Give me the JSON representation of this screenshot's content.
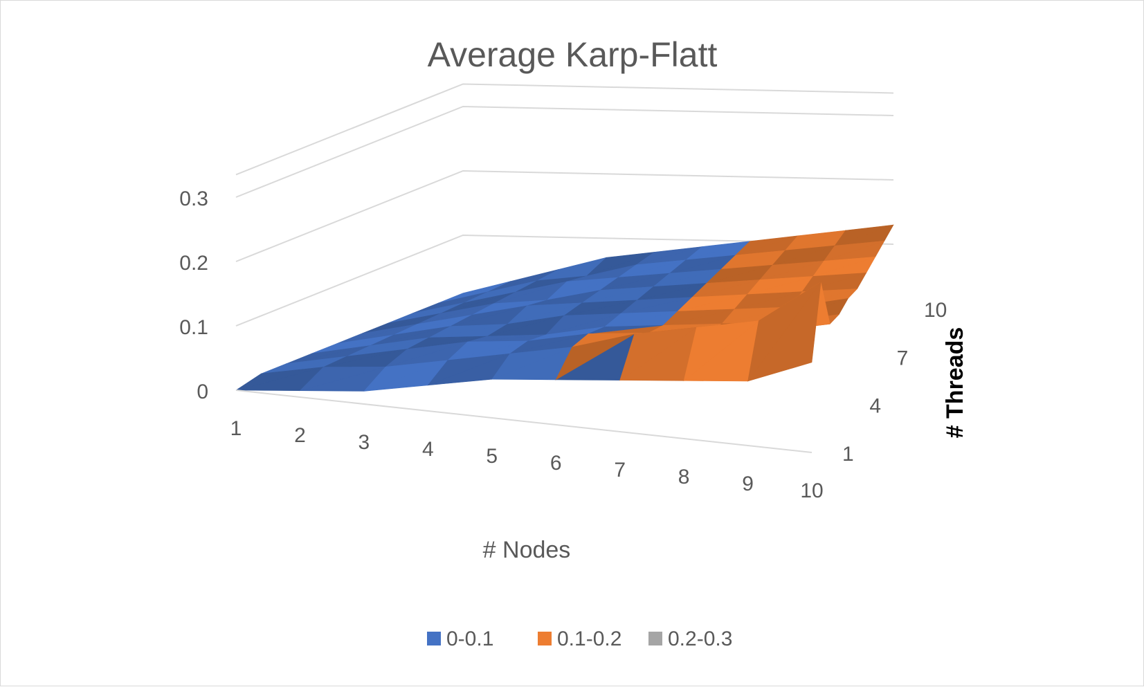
{
  "chart_data": {
    "type": "surface",
    "title": "Average Karp-Flatt",
    "xlabel": "# Nodes",
    "ylabel": "# Threads",
    "zlabel": "",
    "x": [
      1,
      2,
      3,
      4,
      5,
      6,
      7,
      8,
      9,
      10
    ],
    "y": [
      1,
      2,
      3,
      4,
      5,
      6,
      7,
      8,
      9,
      10
    ],
    "x_tick_labels": [
      "1",
      "2",
      "3",
      "4",
      "5",
      "6",
      "7",
      "8",
      "9",
      "10"
    ],
    "y_tick_labels": [
      "1",
      "4",
      "7",
      "10"
    ],
    "z_tick_labels": [
      "0",
      "0.1",
      "0.2",
      "0.3"
    ],
    "zlim": [
      0,
      0.3
    ],
    "z": [
      [
        0.0,
        0.01,
        0.02,
        0.04,
        0.06,
        0.07,
        0.08,
        0.09,
        0.1,
        0.14
      ],
      [
        0.01,
        0.03,
        0.04,
        0.06,
        0.08,
        0.1,
        0.13,
        0.15,
        0.17,
        0.24
      ],
      [
        0.01,
        0.03,
        0.05,
        0.07,
        0.08,
        0.1,
        0.11,
        0.12,
        0.13,
        0.15
      ],
      [
        0.01,
        0.03,
        0.05,
        0.06,
        0.07,
        0.09,
        0.1,
        0.11,
        0.12,
        0.14
      ],
      [
        0.01,
        0.03,
        0.05,
        0.06,
        0.08,
        0.09,
        0.1,
        0.11,
        0.12,
        0.14
      ],
      [
        0.01,
        0.03,
        0.05,
        0.07,
        0.08,
        0.09,
        0.1,
        0.11,
        0.12,
        0.13
      ],
      [
        0.01,
        0.03,
        0.05,
        0.06,
        0.08,
        0.09,
        0.1,
        0.11,
        0.12,
        0.13
      ],
      [
        0.01,
        0.03,
        0.05,
        0.07,
        0.08,
        0.09,
        0.1,
        0.11,
        0.12,
        0.13
      ],
      [
        0.01,
        0.03,
        0.05,
        0.06,
        0.08,
        0.09,
        0.1,
        0.11,
        0.12,
        0.13
      ],
      [
        0.01,
        0.03,
        0.05,
        0.07,
        0.08,
        0.09,
        0.1,
        0.11,
        0.12,
        0.13
      ]
    ],
    "bands": [
      {
        "name": "0-0.1",
        "min": 0,
        "max": 0.1,
        "color": "#4472c4"
      },
      {
        "name": "0.1-0.2",
        "min": 0.1,
        "max": 0.2,
        "color": "#ed7d31"
      },
      {
        "name": "0.2-0.3",
        "min": 0.2,
        "max": 0.3,
        "color": "#a5a5a5"
      }
    ],
    "legend_position": "bottom",
    "grid": true
  }
}
